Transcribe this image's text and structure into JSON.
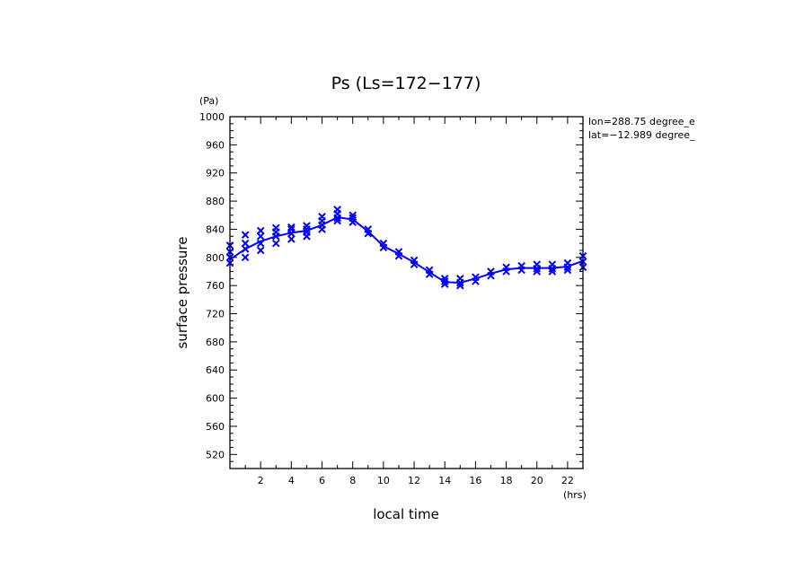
{
  "chart_data": {
    "type": "scatter",
    "title": "Ps (Ls=172−177)",
    "xlabel": "local time",
    "ylabel": "surface pressure",
    "x_unit": "(hrs)",
    "y_unit": "(Pa)",
    "xlim": [
      0,
      23
    ],
    "ylim": [
      500,
      1000
    ],
    "x_ticks": [
      2,
      4,
      6,
      8,
      10,
      12,
      14,
      16,
      18,
      20,
      22
    ],
    "y_ticks": [
      520,
      560,
      600,
      640,
      680,
      720,
      760,
      800,
      840,
      880,
      920,
      960,
      1000
    ],
    "annotations": [
      "lon=288.75 degree_e",
      "lat=−12.989 degree_"
    ],
    "color": "#0000ff",
    "grid": false,
    "series": [
      {
        "style": "line",
        "x": [
          0,
          1,
          2,
          3,
          4,
          5,
          6,
          7,
          8,
          9,
          10,
          11,
          12,
          13,
          14,
          15,
          16,
          17,
          18,
          19,
          20,
          21,
          22,
          23
        ],
        "values": [
          797,
          812,
          823,
          830,
          835,
          838,
          846,
          857,
          854,
          837,
          816,
          805,
          793,
          779,
          765,
          764,
          770,
          777,
          783,
          785,
          785,
          785,
          787,
          795
        ]
      },
      {
        "style": "markers",
        "marker": "x",
        "x": [
          0,
          0,
          0,
          0,
          1,
          1,
          1,
          1,
          2,
          2,
          2,
          2,
          3,
          3,
          3,
          3,
          4,
          4,
          4,
          4,
          5,
          5,
          5,
          5,
          6,
          6,
          6,
          6,
          7,
          7,
          7,
          7,
          8,
          8,
          8,
          9,
          9,
          10,
          10,
          11,
          11,
          12,
          12,
          13,
          13,
          14,
          14,
          14,
          15,
          15,
          15,
          16,
          16,
          17,
          17,
          18,
          18,
          19,
          19,
          20,
          20,
          20,
          21,
          21,
          21,
          22,
          22,
          22,
          23,
          23,
          23
        ],
        "values": [
          792,
          800,
          808,
          817,
          800,
          812,
          820,
          832,
          810,
          820,
          830,
          838,
          820,
          830,
          836,
          842,
          826,
          834,
          840,
          843,
          830,
          836,
          840,
          845,
          840,
          846,
          852,
          858,
          852,
          856,
          862,
          868,
          850,
          856,
          860,
          834,
          840,
          814,
          820,
          802,
          808,
          790,
          796,
          776,
          782,
          762,
          766,
          770,
          760,
          764,
          770,
          766,
          772,
          774,
          780,
          780,
          786,
          782,
          788,
          780,
          784,
          790,
          780,
          784,
          790,
          782,
          786,
          792,
          786,
          794,
          802
        ]
      }
    ]
  }
}
